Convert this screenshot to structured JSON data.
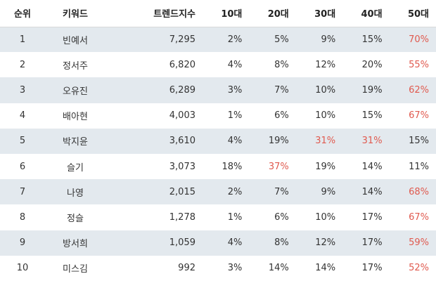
{
  "table": {
    "headers": [
      "순위",
      "키워드",
      "트렌드지수",
      "10대",
      "20대",
      "30대",
      "40대",
      "50대"
    ],
    "highlight_color": "#e05a4f",
    "rows": [
      {
        "rank": "1",
        "keyword": "빈예서",
        "index": "7,295",
        "p10": "2%",
        "p20": "5%",
        "p30": "9%",
        "p40": "15%",
        "p50": "70%",
        "highlight": [
          "p50"
        ]
      },
      {
        "rank": "2",
        "keyword": "정서주",
        "index": "6,820",
        "p10": "4%",
        "p20": "8%",
        "p30": "12%",
        "p40": "20%",
        "p50": "55%",
        "highlight": [
          "p50"
        ]
      },
      {
        "rank": "3",
        "keyword": "오유진",
        "index": "6,289",
        "p10": "3%",
        "p20": "7%",
        "p30": "10%",
        "p40": "19%",
        "p50": "62%",
        "highlight": [
          "p50"
        ]
      },
      {
        "rank": "4",
        "keyword": "배아현",
        "index": "4,003",
        "p10": "1%",
        "p20": "6%",
        "p30": "10%",
        "p40": "15%",
        "p50": "67%",
        "highlight": [
          "p50"
        ]
      },
      {
        "rank": "5",
        "keyword": "박지윤",
        "index": "3,610",
        "p10": "4%",
        "p20": "19%",
        "p30": "31%",
        "p40": "31%",
        "p50": "15%",
        "highlight": [
          "p30",
          "p40"
        ]
      },
      {
        "rank": "6",
        "keyword": "슬기",
        "index": "3,073",
        "p10": "18%",
        "p20": "37%",
        "p30": "19%",
        "p40": "14%",
        "p50": "11%",
        "highlight": [
          "p20"
        ]
      },
      {
        "rank": "7",
        "keyword": "나영",
        "index": "2,015",
        "p10": "2%",
        "p20": "7%",
        "p30": "9%",
        "p40": "14%",
        "p50": "68%",
        "highlight": [
          "p50"
        ]
      },
      {
        "rank": "8",
        "keyword": "정슬",
        "index": "1,278",
        "p10": "1%",
        "p20": "6%",
        "p30": "10%",
        "p40": "17%",
        "p50": "67%",
        "highlight": [
          "p50"
        ]
      },
      {
        "rank": "9",
        "keyword": "방서희",
        "index": "1,059",
        "p10": "4%",
        "p20": "8%",
        "p30": "12%",
        "p40": "17%",
        "p50": "59%",
        "highlight": [
          "p50"
        ]
      },
      {
        "rank": "10",
        "keyword": "미스김",
        "index": "992",
        "p10": "3%",
        "p20": "14%",
        "p30": "14%",
        "p40": "17%",
        "p50": "52%",
        "highlight": [
          "p50"
        ]
      }
    ]
  }
}
